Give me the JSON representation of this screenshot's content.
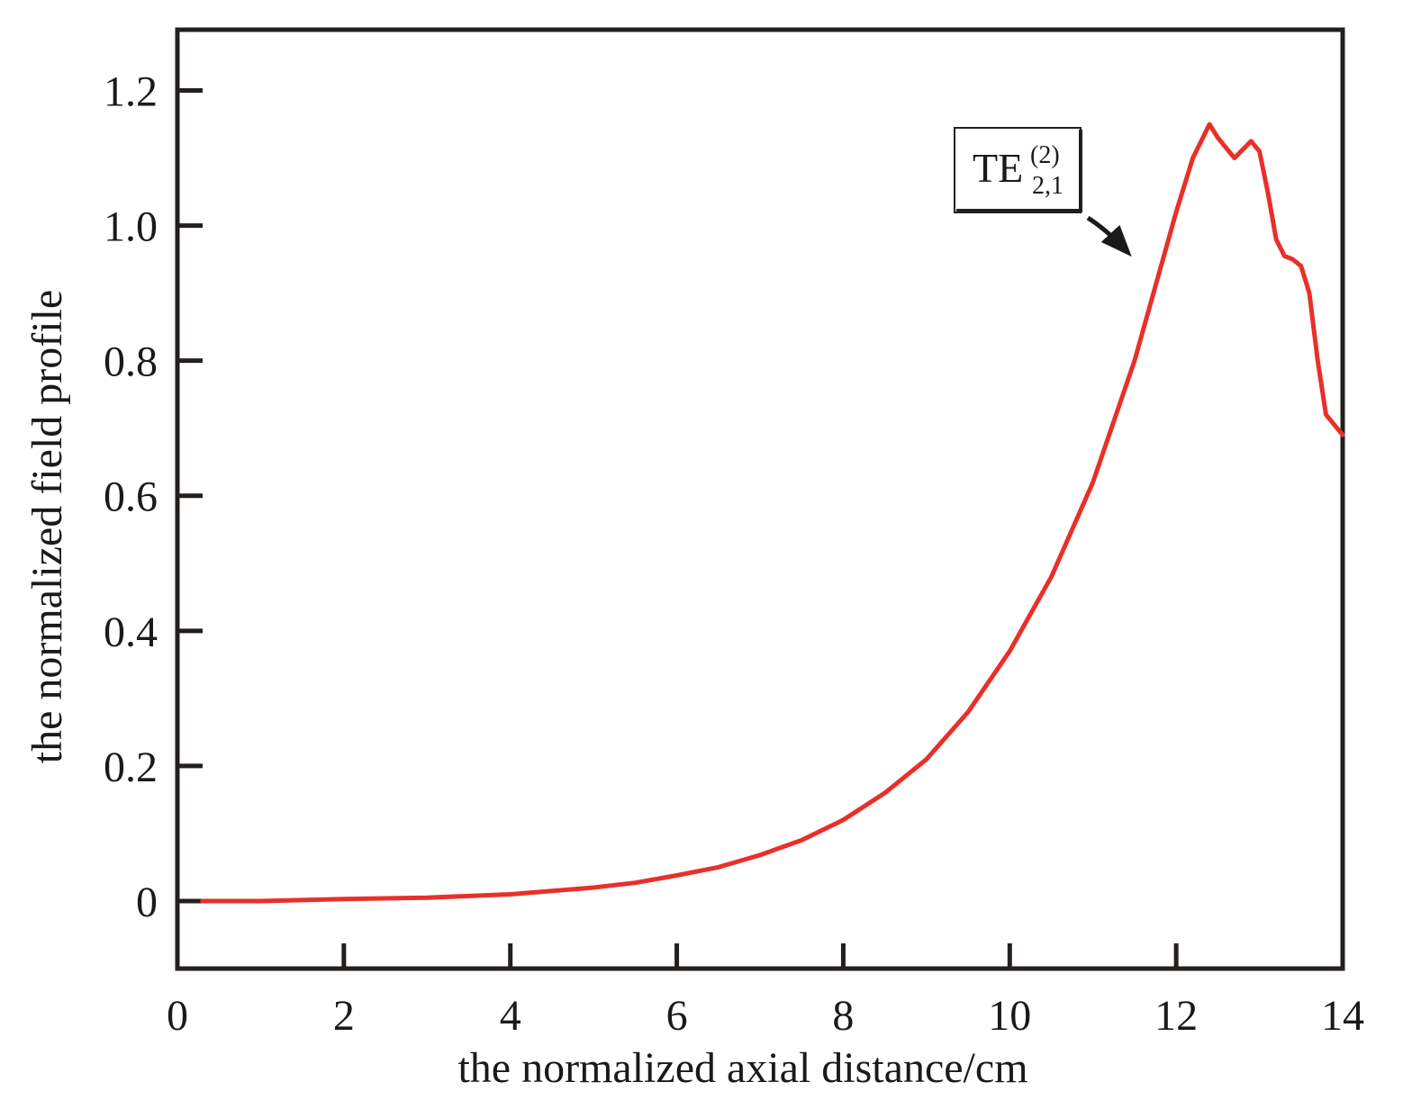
{
  "chart_data": {
    "type": "line",
    "title": "",
    "xlabel": "the normalized axial distance/cm",
    "ylabel": "the normalized field profile",
    "xlim": [
      0,
      14
    ],
    "ylim": [
      -0.1,
      1.29
    ],
    "x_ticks": [
      0,
      2,
      4,
      6,
      8,
      10,
      12,
      14
    ],
    "y_ticks": [
      0,
      0.2,
      0.4,
      0.6,
      0.8,
      1.0,
      1.2
    ],
    "x_tick_labels": [
      "0",
      "2",
      "4",
      "6",
      "8",
      "10",
      "12",
      "14"
    ],
    "y_tick_labels": [
      "0",
      "0.2",
      "0.4",
      "0.6",
      "0.8",
      "1.0",
      "1.2"
    ],
    "grid": false,
    "series": [
      {
        "name": "TE(2)2,1",
        "color": "#e8302a",
        "x": [
          0.3,
          1.0,
          2.0,
          3.0,
          4.0,
          5.0,
          5.5,
          6.0,
          6.5,
          7.0,
          7.5,
          8.0,
          8.5,
          9.0,
          9.5,
          10.0,
          10.5,
          11.0,
          11.5,
          12.0,
          12.2,
          12.4,
          12.5,
          12.7,
          12.9,
          13.0,
          13.1,
          13.2,
          13.3,
          13.4,
          13.5,
          13.6,
          13.7,
          13.8,
          14.0
        ],
        "y": [
          0.0,
          0.0,
          0.003,
          0.005,
          0.01,
          0.02,
          0.027,
          0.038,
          0.05,
          0.068,
          0.09,
          0.12,
          0.16,
          0.21,
          0.28,
          0.37,
          0.48,
          0.62,
          0.8,
          1.02,
          1.1,
          1.15,
          1.13,
          1.1,
          1.125,
          1.11,
          1.05,
          0.98,
          0.955,
          0.95,
          0.94,
          0.9,
          0.8,
          0.72,
          0.69
        ]
      }
    ],
    "annotations": [
      {
        "label_main": "TE",
        "label_sup": "(2)",
        "label_sub": "2,1",
        "points_to": {
          "x": 11.6,
          "y": 0.96
        }
      }
    ]
  }
}
